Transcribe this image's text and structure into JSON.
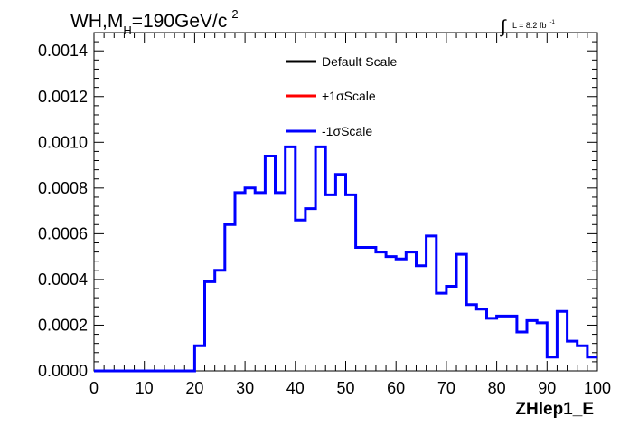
{
  "chart_data": {
    "type": "step",
    "title": "WH,M_H=190GeV/c^2",
    "title_parts": {
      "main": "WH,M",
      "sub": "H",
      "rest": "=190GeV/c",
      "sup": "2"
    },
    "lumi": {
      "symbol": "∫",
      "text": "L = 8.2 fb",
      "sup": "-1"
    },
    "xlabel": "ZHlep1_E",
    "ylabel": "",
    "xlim": [
      0,
      100
    ],
    "ylim": [
      0,
      0.00148
    ],
    "xticks": [
      0,
      10,
      20,
      30,
      40,
      50,
      60,
      70,
      80,
      90,
      100
    ],
    "xtick_labels": [
      "0",
      "10",
      "20",
      "30",
      "40",
      "50",
      "60",
      "70",
      "80",
      "90",
      "100"
    ],
    "yticks": [
      0,
      0.0002,
      0.0004,
      0.0006,
      0.0008,
      0.001,
      0.0012,
      0.0014
    ],
    "ytick_labels": [
      "0.0000",
      "0.0002",
      "0.0004",
      "0.0006",
      "0.0008",
      "0.0010",
      "0.0012",
      "0.0014"
    ],
    "bin_edges": [
      0,
      2,
      4,
      6,
      8,
      10,
      12,
      14,
      16,
      18,
      20,
      22,
      24,
      26,
      28,
      30,
      32,
      34,
      36,
      38,
      40,
      42,
      44,
      46,
      48,
      50,
      52,
      54,
      56,
      58,
      60,
      62,
      64,
      66,
      68,
      70,
      72,
      74,
      76,
      78,
      80,
      82,
      84,
      86,
      88,
      90,
      92,
      94,
      96,
      98,
      100
    ],
    "legend": [
      {
        "label": "Default Scale",
        "color": "#000000"
      },
      {
        "label": "+1σScale",
        "color": "#ff0000"
      },
      {
        "label": "-1σScale",
        "color": "#0000ff"
      }
    ],
    "series": [
      {
        "name": "-1σScale",
        "color": "#0000ff",
        "values": [
          0,
          0,
          0,
          0,
          0,
          0,
          0,
          0,
          0,
          0,
          0.00011,
          0.00039,
          0.00044,
          0.00064,
          0.00078,
          0.0008,
          0.00078,
          0.00094,
          0.00078,
          0.00098,
          0.00066,
          0.00071,
          0.00098,
          0.00077,
          0.00086,
          0.00077,
          0.00054,
          0.00054,
          0.00052,
          0.0005,
          0.00049,
          0.00052,
          0.00046,
          0.00059,
          0.00034,
          0.00037,
          0.00051,
          0.00029,
          0.00027,
          0.00023,
          0.00024,
          0.00024,
          0.00017,
          0.00022,
          0.00021,
          6e-05,
          0.00026,
          0.00013,
          0.00011,
          6e-05
        ]
      }
    ]
  }
}
